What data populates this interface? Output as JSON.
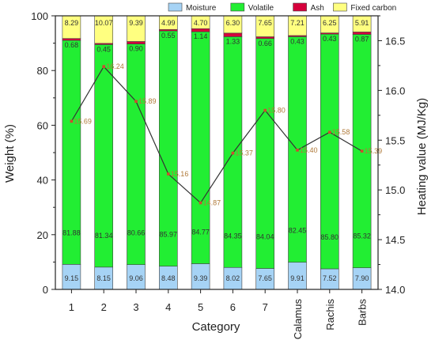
{
  "chart_data": {
    "type": "bar",
    "stacked": true,
    "categories": [
      "1",
      "2",
      "3",
      "4",
      "5",
      "6",
      "7",
      "Calamus",
      "Rachis",
      "Barbs"
    ],
    "series": [
      {
        "name": "Moisture",
        "color": "#a6d3f5",
        "values": [
          9.15,
          8.15,
          9.06,
          8.48,
          9.39,
          8.02,
          7.65,
          9.91,
          7.52,
          7.9
        ]
      },
      {
        "name": "Volatile",
        "color": "#22ee33",
        "values": [
          81.88,
          81.34,
          80.66,
          85.97,
          84.77,
          84.35,
          84.04,
          82.45,
          85.8,
          85.32
        ]
      },
      {
        "name": "Ash",
        "color": "#d6003c",
        "values": [
          0.68,
          0.45,
          0.9,
          0.55,
          1.14,
          1.33,
          0.66,
          0.43,
          0.43,
          0.87
        ]
      },
      {
        "name": "Fixed carbon",
        "color": "#ffff80",
        "values": [
          8.29,
          10.07,
          9.39,
          4.99,
          4.7,
          6.3,
          7.65,
          7.21,
          6.25,
          5.91
        ]
      }
    ],
    "line_series": {
      "name": "",
      "axis": "right",
      "values": [
        15.69,
        16.24,
        15.89,
        15.16,
        14.87,
        15.37,
        15.8,
        15.4,
        15.58,
        15.39
      ],
      "labels": [
        "15.69",
        "16.24",
        "15.89",
        "15.16",
        "14.87",
        "15.37",
        "15.80",
        "15.40",
        "15.58",
        "15.39"
      ]
    },
    "labels": {
      "Moisture": [
        "9.15",
        "8.15",
        "9.06",
        "8.48",
        "9.39",
        "8.02",
        "7.65",
        "9.91",
        "7.52",
        "7.90"
      ],
      "Volatile": [
        "81.88",
        "81.34",
        "80.66",
        "85.97",
        "84.77",
        "84.35",
        "84.04",
        "82.45",
        "85.80",
        "85.32"
      ],
      "Ash": [
        "0.68",
        "0.45",
        "0.90",
        "0.55",
        "1.14",
        "1.33",
        "0.66",
        "0.43",
        "0.43",
        "0.87"
      ],
      "Fixed carbon": [
        "8.29",
        "10.07",
        "9.39",
        "4.99",
        "4.70",
        "6.30",
        "7.65",
        "7.21",
        "6.25",
        "5.91"
      ]
    },
    "xlabel": "Category",
    "ylabel": "Weight (%)",
    "y2label": "Heating value (MJ/Kg)",
    "ylim": [
      0,
      100
    ],
    "y2lim": [
      14.0,
      16.75
    ],
    "yticks": [
      "0",
      "20",
      "40",
      "60",
      "80",
      "100"
    ],
    "y2ticks": [
      "14.0",
      "14.5",
      "15.0",
      "15.5",
      "16.0",
      "16.5"
    ],
    "legend_position": "top",
    "line_color": "#333333",
    "marker_color": "#d04a30",
    "grid": false
  }
}
